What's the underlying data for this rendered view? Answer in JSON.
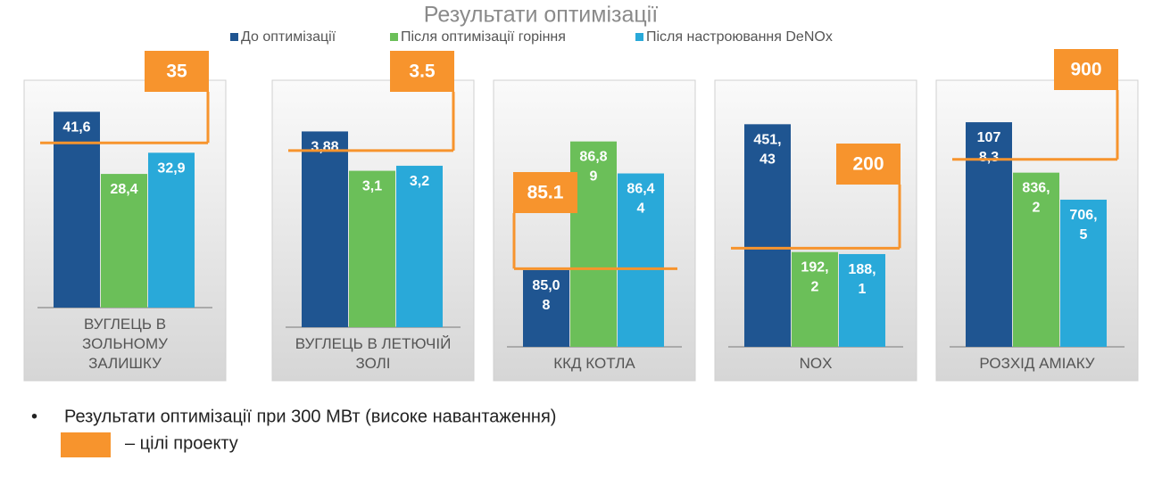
{
  "title": "Результати оптимізації",
  "legend": [
    {
      "name": "До оптимізації",
      "color": "#1f5591"
    },
    {
      "name": "Після оптимізації горіння",
      "color": "#6bbf59"
    },
    {
      "name": "Після настроювання DeNOx",
      "color": "#29a9d9"
    }
  ],
  "target_color": "#f7942d",
  "chart_data": [
    {
      "type": "bar",
      "category": "ВУГЛЕЦЬ В ЗОЛЬНОМУ ЗАЛИШКУ",
      "values": [
        41.6,
        28.4,
        32.9
      ],
      "value_labels": [
        "41,6",
        "28,4",
        "32,9"
      ],
      "target": 35,
      "ylim": [
        0,
        43
      ]
    },
    {
      "type": "bar",
      "category": "ВУГЛЕЦЬ В ЛЕТЮЧІЙ ЗОЛІ",
      "values": [
        3.88,
        3.1,
        3.2
      ],
      "value_labels": [
        "3,88",
        "3,1",
        "3,2"
      ],
      "target": 3.5,
      "ylim": [
        0,
        4.4
      ]
    },
    {
      "type": "bar",
      "category": "ККД КОТЛА",
      "values": [
        85.08,
        86.89,
        86.44
      ],
      "value_labels": [
        "85,08",
        "86,89",
        "86,44"
      ],
      "target": 85.1,
      "ylim": [
        84,
        87.4
      ]
    },
    {
      "type": "bar",
      "category": "NOX",
      "values": [
        451.43,
        192.2,
        188.1
      ],
      "value_labels": [
        "451,43",
        "192,2",
        "188,1"
      ],
      "target": 200,
      "ylim": [
        0,
        490
      ]
    },
    {
      "type": "bar",
      "category": "РОЗХІД АМІАКУ",
      "values": [
        1078.3,
        836.2,
        706.5
      ],
      "value_labels": [
        "1078,3",
        "836,2",
        "706,5"
      ],
      "target": 900,
      "ylim": [
        0,
        1160
      ]
    }
  ],
  "bullets": [
    "Результати оптимізації при 300 МВт (високе навантаження)",
    "– цілі проекту"
  ]
}
